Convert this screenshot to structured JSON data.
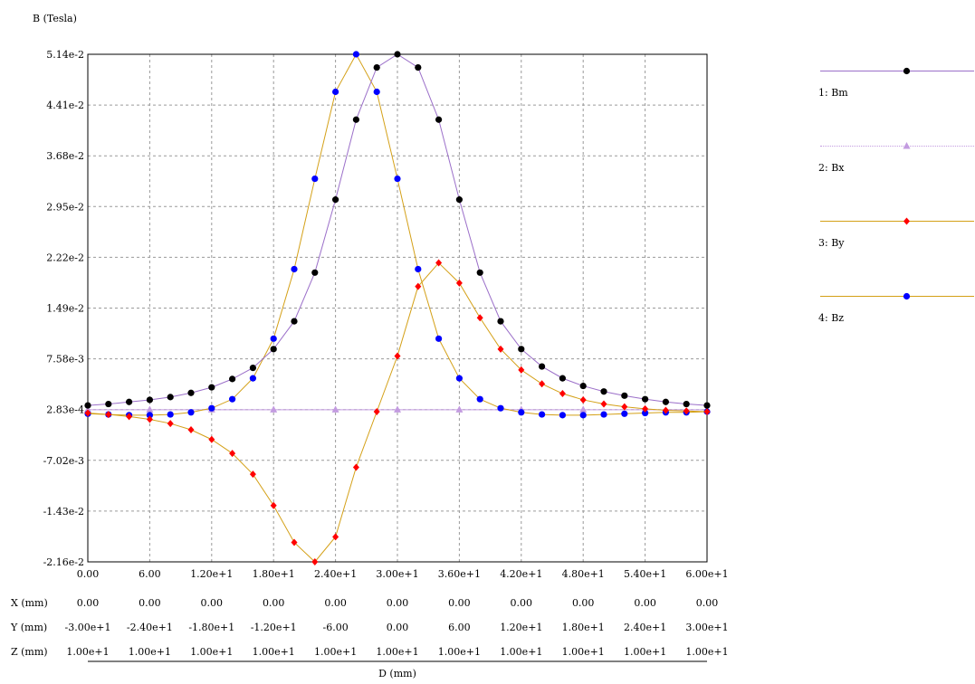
{
  "chart_data": {
    "type": "line",
    "ylabel": "B (Tesla)",
    "xlabel": "D (mm)",
    "xlim": [
      0,
      60
    ],
    "ylim": [
      -0.0216,
      0.0514
    ],
    "grid": true,
    "legend_position": "right",
    "y_ticks": [
      "5.14e-2",
      "4.41e-2",
      "3.68e-2",
      "2.95e-2",
      "2.22e-2",
      "1.49e-2",
      "7.58e-3",
      "2.83e-4",
      "-7.02e-3",
      "-1.43e-2",
      "-2.16e-2"
    ],
    "x_ticks": [
      "0.00",
      "6.00",
      "1.20e+1",
      "1.80e+1",
      "2.40e+1",
      "3.00e+1",
      "3.60e+1",
      "4.20e+1",
      "4.80e+1",
      "5.40e+1",
      "6.00e+1"
    ],
    "coord_rows": [
      {
        "label": "X (mm)",
        "values": [
          "0.00",
          "0.00",
          "0.00",
          "0.00",
          "0.00",
          "0.00",
          "0.00",
          "0.00",
          "0.00",
          "0.00",
          "0.00"
        ]
      },
      {
        "label": "Y (mm)",
        "values": [
          "-3.00e+1",
          "-2.40e+1",
          "-1.80e+1",
          "-1.20e+1",
          "-6.00",
          "0.00",
          "6.00",
          "1.20e+1",
          "1.80e+1",
          "2.40e+1",
          "3.00e+1"
        ]
      },
      {
        "label": "Z (mm)",
        "values": [
          "1.00e+1",
          "1.00e+1",
          "1.00e+1",
          "1.00e+1",
          "1.00e+1",
          "1.00e+1",
          "1.00e+1",
          "1.00e+1",
          "1.00e+1",
          "1.00e+1",
          "1.00e+1"
        ]
      }
    ],
    "series": [
      {
        "name": "1: Bm",
        "color": "#000000",
        "line_color": "#9b6fc9",
        "marker": "circle",
        "x": [
          0,
          2,
          4,
          6,
          8,
          10,
          12,
          14,
          16,
          18,
          20,
          22,
          24,
          26,
          28,
          30,
          32,
          34,
          36,
          38,
          40,
          42,
          44,
          46,
          48,
          50,
          52,
          54,
          56,
          58,
          60
        ],
        "y": [
          0.0009,
          0.0011,
          0.0014,
          0.0017,
          0.0021,
          0.0027,
          0.0035,
          0.0047,
          0.0063,
          0.009,
          0.013,
          0.02,
          0.0305,
          0.042,
          0.0495,
          0.0514,
          0.0495,
          0.042,
          0.0305,
          0.02,
          0.013,
          0.009,
          0.0065,
          0.0048,
          0.0037,
          0.0029,
          0.0023,
          0.0018,
          0.0014,
          0.0011,
          0.0009
        ]
      },
      {
        "name": "2: Bx",
        "color": "#c39be0",
        "line_color": "#c39be0",
        "marker": "triangle",
        "x": [
          0,
          6,
          12,
          18,
          24,
          30,
          36,
          42,
          48,
          54,
          60
        ],
        "y": [
          0.000283,
          0.000283,
          0.000283,
          0.000283,
          0.000283,
          0.000283,
          0.000283,
          0.000283,
          0.000283,
          0.000283,
          0.000283
        ]
      },
      {
        "name": "3: By",
        "color": "#ff0000",
        "line_color": "#d4a017",
        "marker": "diamond",
        "x": [
          0,
          2,
          4,
          6,
          8,
          10,
          12,
          14,
          16,
          18,
          20,
          22,
          24,
          26,
          28,
          30,
          32,
          34,
          36,
          38,
          40,
          42,
          44,
          46,
          48,
          50,
          52,
          54,
          56,
          58,
          60
        ],
        "y": [
          -0.0002,
          -0.0004,
          -0.0007,
          -0.0011,
          -0.0017,
          -0.0026,
          -0.004,
          -0.006,
          -0.009,
          -0.0135,
          -0.0188,
          -0.0216,
          -0.018,
          -0.008,
          0.0,
          0.008,
          0.018,
          0.0214,
          0.0185,
          0.0135,
          0.009,
          0.006,
          0.004,
          0.0026,
          0.0017,
          0.0011,
          0.0007,
          0.0004,
          0.0002,
          0.0001,
          0.0
        ]
      },
      {
        "name": "4: Bz",
        "color": "#0000ff",
        "line_color": "#d4a017",
        "marker": "circle",
        "x": [
          0,
          2,
          4,
          6,
          8,
          10,
          12,
          14,
          16,
          18,
          20,
          22,
          24,
          26,
          28,
          30,
          32,
          34,
          36,
          38,
          40,
          42,
          44,
          46,
          48,
          50,
          52,
          54,
          56,
          58,
          60
        ],
        "y": [
          -0.0003,
          -0.0004,
          -0.0005,
          -0.0005,
          -0.0004,
          -0.0001,
          0.0005,
          0.0018,
          0.0048,
          0.0105,
          0.0205,
          0.0335,
          0.046,
          0.0514,
          0.046,
          0.0335,
          0.0205,
          0.0105,
          0.0048,
          0.0018,
          0.0005,
          -0.0001,
          -0.0004,
          -0.0005,
          -0.0005,
          -0.0004,
          -0.0003,
          -0.0002,
          -0.0001,
          -0.0001,
          0.0
        ]
      }
    ]
  }
}
